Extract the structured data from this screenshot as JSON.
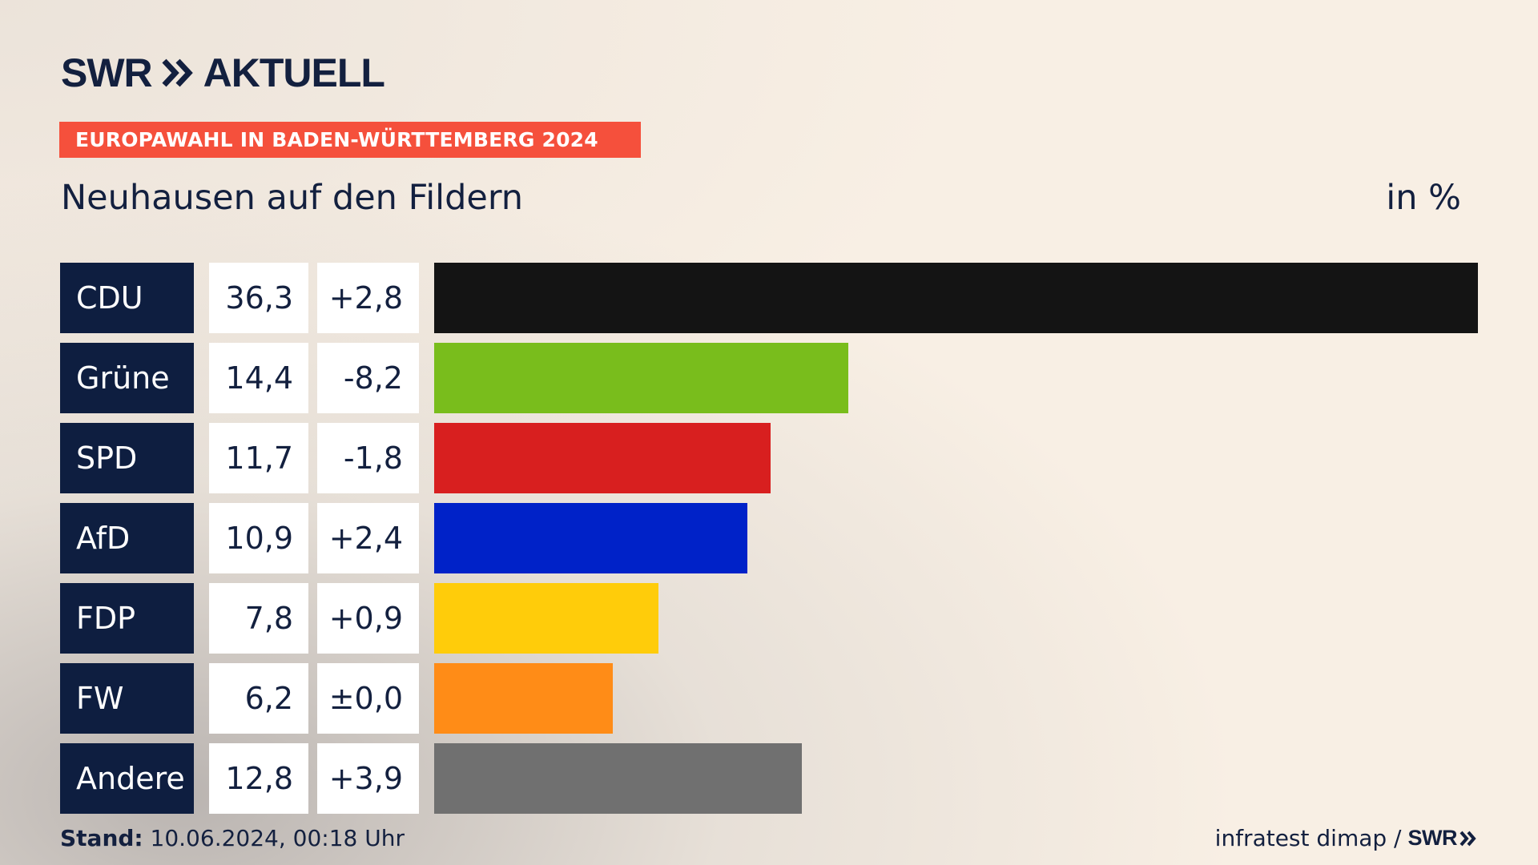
{
  "brand": {
    "logo_text": "SWR",
    "logo_suffix": "AKTUELL",
    "logo_icon": "double-chevron-icon"
  },
  "banner": "EUROPAWAHL IN BADEN-WÜRTTEMBERG 2024",
  "subtitle": "Neuhausen auf den Fildern",
  "unit": "in %",
  "chart_data": {
    "type": "bar",
    "orientation": "horizontal",
    "categories": [
      "CDU",
      "Grüne",
      "SPD",
      "AfD",
      "FDP",
      "FW",
      "Andere"
    ],
    "values": [
      36.3,
      14.4,
      11.7,
      10.9,
      7.8,
      6.2,
      12.8
    ],
    "value_labels": [
      "36,3",
      "14,4",
      "11,7",
      "10,9",
      "7,8",
      "6,2",
      "12,8"
    ],
    "change_labels": [
      "+2,8",
      "-8,2",
      "-1,8",
      "+2,4",
      "+0,9",
      "±0,0",
      "+3,9"
    ],
    "changes": [
      2.8,
      -8.2,
      -1.8,
      2.4,
      0.9,
      0.0,
      3.9
    ],
    "colors": [
      "#141414",
      "#79bd1c",
      "#d81f1f",
      "#0022c8",
      "#ffcc0a",
      "#ff8c17",
      "#707070"
    ],
    "title": "Neuhausen auf den Fildern",
    "unit": "in %",
    "xlim": [
      0,
      36.3
    ]
  },
  "footer": {
    "stand_label": "Stand:",
    "stand_value": "10.06.2024, 00:18 Uhr",
    "source": "infratest dimap /",
    "source_logo": "SWR"
  }
}
